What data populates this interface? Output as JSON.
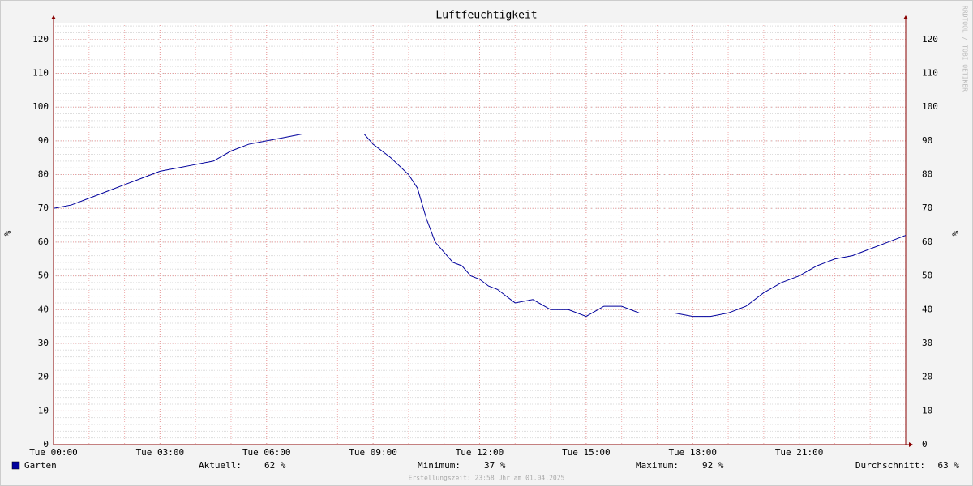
{
  "chart_data": {
    "type": "line",
    "title": "Luftfeuchtigkeit",
    "y_label": "%",
    "watermark": "RRDTOOL / TOBI OETIKER",
    "footer": "Erstellungszeit: 23:58 Uhr am 01.04.2025",
    "x": [
      0,
      0.5,
      1,
      1.5,
      2,
      2.5,
      3,
      3.5,
      4,
      4.5,
      5,
      5.5,
      6,
      6.5,
      7,
      7.5,
      8,
      8.5,
      8.75,
      9,
      9.5,
      10,
      10.25,
      10.5,
      10.75,
      11,
      11.25,
      11.5,
      11.75,
      12,
      12.25,
      12.5,
      12.75,
      13,
      13.5,
      14,
      14.5,
      15,
      15.5,
      16,
      16.5,
      17,
      17.5,
      18,
      18.5,
      19,
      19.5,
      20,
      20.5,
      21,
      21.5,
      22,
      22.5,
      23,
      23.5,
      24
    ],
    "series": [
      {
        "name": "Garten",
        "color": "#00009c",
        "values": [
          70,
          71,
          73,
          75,
          77,
          79,
          81,
          82,
          83,
          84,
          87,
          89,
          90,
          91,
          92,
          92,
          92,
          92,
          92,
          89,
          85,
          80,
          76,
          67,
          60,
          57,
          54,
          53,
          50,
          49,
          47,
          46,
          44,
          42,
          43,
          40,
          40,
          38,
          41,
          41,
          39,
          39,
          39,
          38,
          38,
          39,
          41,
          45,
          48,
          50,
          53,
          55,
          56,
          58,
          60,
          62
        ]
      }
    ],
    "stats": [
      {
        "label": "Aktuell:",
        "text": "62 %"
      },
      {
        "label": "Minimum:",
        "text": "37 %"
      },
      {
        "label": "Maximum:",
        "text": "92 %"
      },
      {
        "label": "Durchschnitt:",
        "text": "63 %"
      }
    ],
    "xlim": [
      0,
      24
    ],
    "xticks": [
      {
        "value": 0,
        "label": "Tue 00:00"
      },
      {
        "value": 3,
        "label": "Tue 03:00"
      },
      {
        "value": 6,
        "label": "Tue 06:00"
      },
      {
        "value": 9,
        "label": "Tue 09:00"
      },
      {
        "value": 12,
        "label": "Tue 12:00"
      },
      {
        "value": 15,
        "label": "Tue 15:00"
      },
      {
        "value": 18,
        "label": "Tue 18:00"
      },
      {
        "value": 21,
        "label": "Tue 21:00"
      }
    ],
    "ylim": [
      0,
      125
    ],
    "yticks": [
      0,
      10,
      20,
      30,
      40,
      50,
      60,
      70,
      80,
      90,
      100,
      110,
      120
    ],
    "grid": true,
    "minor_grid": true
  }
}
